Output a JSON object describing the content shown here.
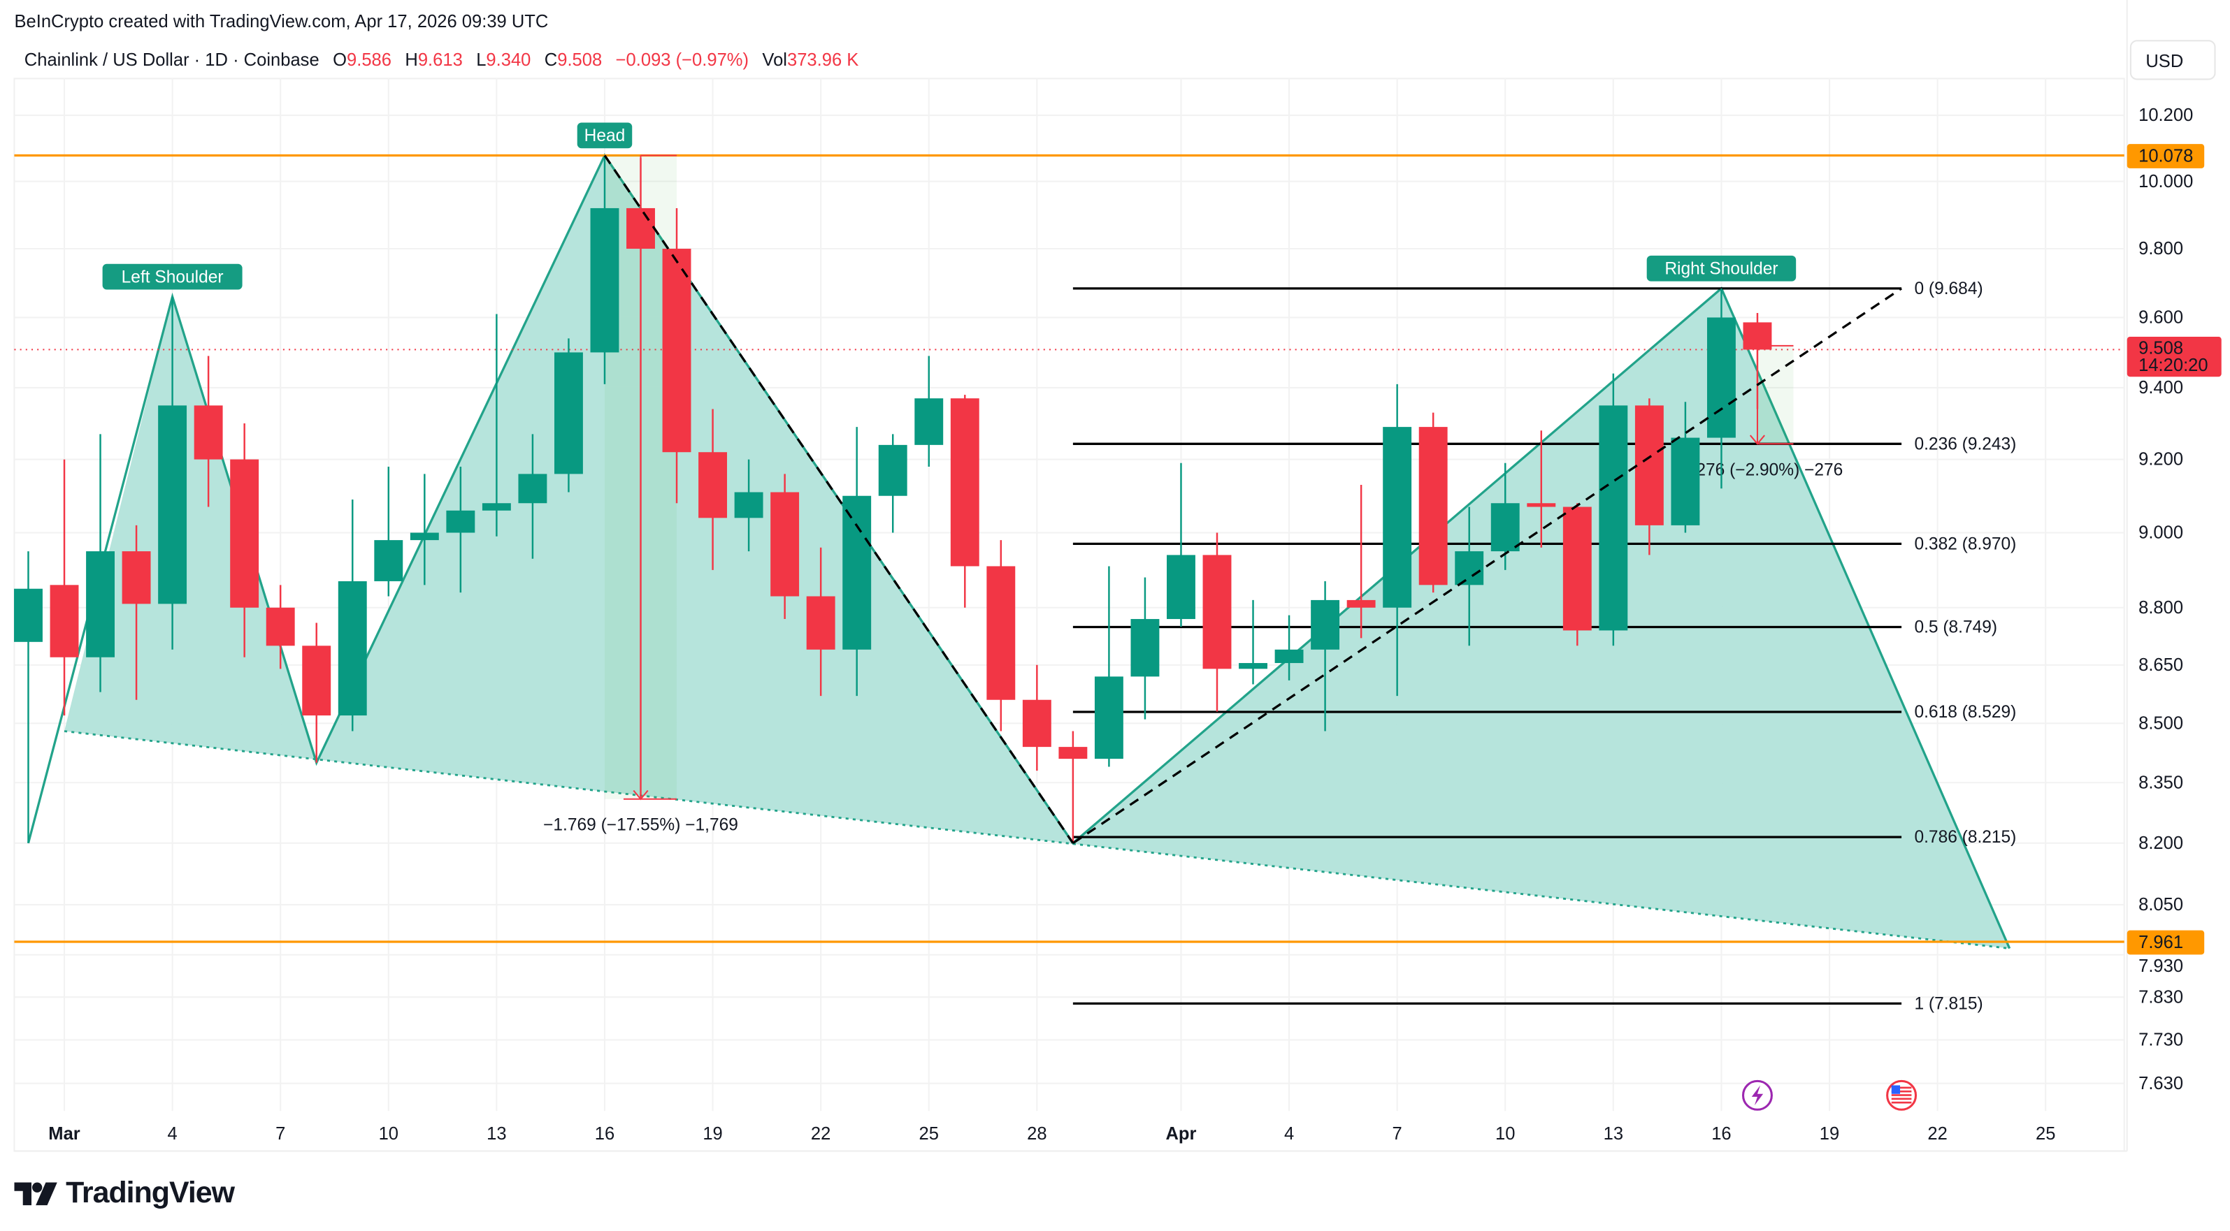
{
  "credit": "BeInCrypto created with TradingView.com, Apr 17, 2026 09:39 UTC",
  "legend": {
    "symbol": "Chainlink / US Dollar · 1D · Coinbase",
    "o_label": "O",
    "o": "9.586",
    "h_label": "H",
    "h": "9.613",
    "l_label": "L",
    "l": "9.340",
    "c_label": "C",
    "c": "9.508",
    "change": "−0.093 (−0.97%)",
    "vol_label": "Vol",
    "vol": "373.96 K"
  },
  "currency": "USD",
  "colors": {
    "up": "#089981",
    "down": "#F23645",
    "level": "#FF9800",
    "pattern": "#22A38A",
    "pattern_fill": "#B2E3DA",
    "fib": "#000000"
  },
  "price_axis": {
    "scale": "log",
    "ticks": [
      "10.200",
      "10.000",
      "9.800",
      "9.600",
      "9.400",
      "9.200",
      "9.000",
      "8.800",
      "8.650",
      "8.500",
      "8.350",
      "8.200",
      "8.050",
      "7.930",
      "7.830",
      "7.730",
      "7.630"
    ],
    "badges": [
      {
        "price": 10.078,
        "text": "10.078",
        "color": "#FF9800"
      },
      {
        "price": 7.961,
        "text": "7.961",
        "color": "#FF9800"
      }
    ],
    "last_price": {
      "price": 9.508,
      "text": "9.508",
      "countdown": "14:20:20",
      "color": "#F23645"
    }
  },
  "time_axis": {
    "ticks": [
      {
        "date": "2026-03-01",
        "text": "Mar",
        "bold": true
      },
      {
        "date": "2026-03-04",
        "text": "4"
      },
      {
        "date": "2026-03-07",
        "text": "7"
      },
      {
        "date": "2026-03-10",
        "text": "10"
      },
      {
        "date": "2026-03-13",
        "text": "13"
      },
      {
        "date": "2026-03-16",
        "text": "16"
      },
      {
        "date": "2026-03-19",
        "text": "19"
      },
      {
        "date": "2026-03-22",
        "text": "22"
      },
      {
        "date": "2026-03-25",
        "text": "25"
      },
      {
        "date": "2026-03-28",
        "text": "28"
      },
      {
        "date": "2026-04-01",
        "text": "Apr",
        "bold": true
      },
      {
        "date": "2026-04-04",
        "text": "4"
      },
      {
        "date": "2026-04-07",
        "text": "7"
      },
      {
        "date": "2026-04-10",
        "text": "10"
      },
      {
        "date": "2026-04-13",
        "text": "13"
      },
      {
        "date": "2026-04-16",
        "text": "16"
      },
      {
        "date": "2026-04-19",
        "text": "19"
      },
      {
        "date": "2026-04-22",
        "text": "22"
      },
      {
        "date": "2026-04-25",
        "text": "25"
      }
    ]
  },
  "chart_data": {
    "type": "candlestick",
    "columns": [
      "date",
      "open",
      "high",
      "low",
      "close"
    ],
    "candles": [
      [
        "2026-02-28",
        8.71,
        8.95,
        8.2,
        8.85
      ],
      [
        "2026-03-01",
        8.86,
        9.2,
        8.52,
        8.67
      ],
      [
        "2026-03-02",
        8.67,
        9.27,
        8.58,
        8.95
      ],
      [
        "2026-03-03",
        8.95,
        9.02,
        8.56,
        8.81
      ],
      [
        "2026-03-04",
        8.81,
        9.66,
        8.69,
        9.35
      ],
      [
        "2026-03-05",
        9.35,
        9.49,
        9.07,
        9.2
      ],
      [
        "2026-03-06",
        9.2,
        9.3,
        8.67,
        8.8
      ],
      [
        "2026-03-07",
        8.8,
        8.86,
        8.64,
        8.7
      ],
      [
        "2026-03-08",
        8.7,
        8.76,
        8.4,
        8.52
      ],
      [
        "2026-03-09",
        8.52,
        9.09,
        8.48,
        8.87
      ],
      [
        "2026-03-10",
        8.87,
        9.18,
        8.83,
        8.98
      ],
      [
        "2026-03-11",
        8.98,
        9.16,
        8.86,
        9.0
      ],
      [
        "2026-03-12",
        9.0,
        9.18,
        8.84,
        9.06
      ],
      [
        "2026-03-13",
        9.06,
        9.61,
        8.99,
        9.08
      ],
      [
        "2026-03-14",
        9.08,
        9.27,
        8.93,
        9.16
      ],
      [
        "2026-03-15",
        9.16,
        9.54,
        9.11,
        9.5
      ],
      [
        "2026-03-16",
        9.5,
        10.078,
        9.41,
        9.92
      ],
      [
        "2026-03-17",
        9.92,
        10.07,
        8.31,
        9.8
      ],
      [
        "2026-03-18",
        9.8,
        9.92,
        9.08,
        9.22
      ],
      [
        "2026-03-19",
        9.22,
        9.34,
        8.9,
        9.04
      ],
      [
        "2026-03-20",
        9.04,
        9.2,
        8.95,
        9.11
      ],
      [
        "2026-03-21",
        9.11,
        9.16,
        8.77,
        8.83
      ],
      [
        "2026-03-22",
        8.83,
        8.96,
        8.57,
        8.69
      ],
      [
        "2026-03-23",
        8.69,
        9.29,
        8.57,
        9.1
      ],
      [
        "2026-03-24",
        9.1,
        9.27,
        9.0,
        9.24
      ],
      [
        "2026-03-25",
        9.24,
        9.49,
        9.18,
        9.37
      ],
      [
        "2026-03-26",
        9.37,
        9.38,
        8.8,
        8.91
      ],
      [
        "2026-03-27",
        8.91,
        8.98,
        8.48,
        8.56
      ],
      [
        "2026-03-28",
        8.56,
        8.65,
        8.38,
        8.44
      ],
      [
        "2026-03-29",
        8.44,
        8.48,
        8.2,
        8.41
      ],
      [
        "2026-03-30",
        8.41,
        8.91,
        8.39,
        8.62
      ],
      [
        "2026-03-31",
        8.62,
        8.88,
        8.51,
        8.77
      ],
      [
        "2026-04-01",
        8.77,
        9.19,
        8.75,
        8.94
      ],
      [
        "2026-04-02",
        8.94,
        9.0,
        8.53,
        8.64
      ],
      [
        "2026-04-03",
        8.64,
        8.82,
        8.6,
        8.655
      ],
      [
        "2026-04-04",
        8.655,
        8.78,
        8.61,
        8.69
      ],
      [
        "2026-04-05",
        8.69,
        8.87,
        8.48,
        8.82
      ],
      [
        "2026-04-06",
        8.82,
        9.13,
        8.72,
        8.8
      ],
      [
        "2026-04-07",
        8.8,
        9.41,
        8.57,
        9.29
      ],
      [
        "2026-04-08",
        9.29,
        9.33,
        8.84,
        8.86
      ],
      [
        "2026-04-09",
        8.86,
        9.07,
        8.7,
        8.95
      ],
      [
        "2026-04-10",
        8.95,
        9.19,
        8.9,
        9.08
      ],
      [
        "2026-04-11",
        9.08,
        9.28,
        8.96,
        9.07
      ],
      [
        "2026-04-12",
        9.07,
        9.08,
        8.7,
        8.74
      ],
      [
        "2026-04-13",
        8.74,
        9.44,
        8.7,
        9.35
      ],
      [
        "2026-04-14",
        9.35,
        9.37,
        8.94,
        9.02
      ],
      [
        "2026-04-15",
        9.02,
        9.36,
        9.0,
        9.26
      ],
      [
        "2026-04-16",
        9.26,
        9.684,
        9.12,
        9.6
      ],
      [
        "2026-04-17",
        9.586,
        9.613,
        9.34,
        9.508
      ]
    ],
    "horizontal_levels": [
      10.078,
      7.961
    ],
    "pattern": {
      "name": "head-and-shoulders",
      "zigzag": [
        [
          "2026-02-28",
          8.2
        ],
        [
          "2026-03-04",
          9.66
        ],
        [
          "2026-03-08",
          8.4
        ],
        [
          "2026-03-16",
          10.078
        ],
        [
          "2026-03-29",
          8.2
        ],
        [
          "2026-04-16",
          9.684
        ],
        [
          "2026-04-24",
          7.945
        ]
      ],
      "neckline": [
        [
          "2026-03-01",
          8.48
        ],
        [
          "2026-04-24",
          7.945
        ]
      ],
      "labels": [
        {
          "text": "Left Shoulder",
          "date": "2026-03-04",
          "price": 9.66
        },
        {
          "text": "Head",
          "date": "2026-03-16",
          "price": 10.078
        },
        {
          "text": "Right Shoulder",
          "date": "2026-04-16",
          "price": 9.684
        }
      ]
    },
    "trend_lines": [
      [
        [
          "2026-03-16",
          10.078
        ],
        [
          "2026-03-29",
          8.2
        ]
      ],
      [
        [
          "2026-03-29",
          8.2
        ],
        [
          "2026-04-21",
          9.684
        ]
      ]
    ],
    "fib_retracement": {
      "from": "2026-03-29",
      "to": "2026-04-21",
      "levels": [
        {
          "ratio": "0",
          "price": 9.684,
          "text": "0 (9.684)"
        },
        {
          "ratio": "0.236",
          "price": 9.243,
          "text": "0.236 (9.243)"
        },
        {
          "ratio": "0.382",
          "price": 8.97,
          "text": "0.382 (8.970)"
        },
        {
          "ratio": "0.5",
          "price": 8.749,
          "text": "0.5 (8.749)"
        },
        {
          "ratio": "0.618",
          "price": 8.529,
          "text": "0.618 (8.529)"
        },
        {
          "ratio": "0.786",
          "price": 8.215,
          "text": "0.786 (8.215)"
        },
        {
          "ratio": "1",
          "price": 7.815,
          "text": "1 (7.815)"
        }
      ]
    },
    "measurements": [
      {
        "from": "2026-03-16",
        "to": "2026-03-18",
        "at": "2026-03-17",
        "top": 10.078,
        "bottom": 8.309,
        "text": "−1.769 (−17.55%) −1,769"
      },
      {
        "from": "2026-04-17",
        "to": "2026-04-18",
        "at": "2026-04-17",
        "top": 9.519,
        "bottom": 9.243,
        "text": "−0.276 (−2.90%) −276"
      }
    ],
    "events": [
      {
        "date": "2026-04-17",
        "icon": "lightning-icon",
        "color": "#9C27B0"
      },
      {
        "date": "2026-04-21",
        "icon": "us-flag-icon",
        "color": "#F23645"
      }
    ]
  },
  "footer": {
    "logo_text": "TradingView"
  }
}
